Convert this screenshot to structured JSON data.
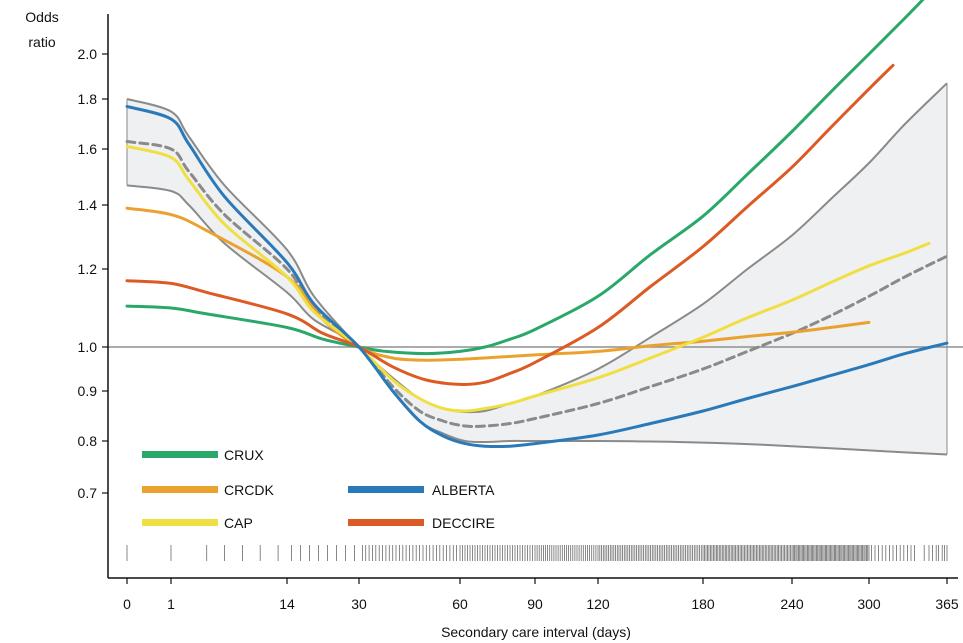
{
  "chart_data": {
    "type": "line",
    "title": "",
    "xlabel": "Secondary care interval (days)",
    "ylabel": "Odds ratio",
    "ylabel_lines": [
      "Odds",
      "ratio"
    ],
    "y_scale": "log",
    "ylim": [
      0.62,
      2.22
    ],
    "reference_line_y": 1.0,
    "x_ticks": [
      0,
      1,
      14,
      30,
      60,
      90,
      120,
      180,
      240,
      300,
      365
    ],
    "x_tick_labels": [
      "0",
      "1",
      "14",
      "30",
      "60",
      "90",
      "120",
      "180",
      "240",
      "300",
      "365"
    ],
    "y_ticks": [
      0.7,
      0.8,
      0.9,
      1.0,
      1.2,
      1.4,
      1.6,
      1.8,
      2.0
    ],
    "y_tick_labels": [
      "0.7",
      "0.8",
      "0.9",
      "1.0",
      "1.2",
      "1.4",
      "1.6",
      "1.8",
      "2.0"
    ],
    "legend": {
      "placement": "bottom-left",
      "entries": [
        "CRUX",
        "CRCDK",
        "ALBERTA",
        "CAP",
        "DECCIRE"
      ]
    },
    "series": [
      {
        "name": "CRUX",
        "color": "#2aa86a",
        "width": 3,
        "dash": "",
        "points": [
          [
            0,
            1.105
          ],
          [
            1,
            1.1
          ],
          [
            5,
            1.085
          ],
          [
            14,
            1.05
          ],
          [
            22,
            1.02
          ],
          [
            30,
            1.0
          ],
          [
            38,
            0.99
          ],
          [
            50,
            0.985
          ],
          [
            60,
            0.99
          ],
          [
            70,
            1.0
          ],
          [
            80,
            1.02
          ],
          [
            90,
            1.045
          ],
          [
            120,
            1.13
          ],
          [
            150,
            1.245
          ],
          [
            180,
            1.365
          ],
          [
            210,
            1.51
          ],
          [
            240,
            1.67
          ],
          [
            270,
            1.83
          ],
          [
            300,
            2.0
          ],
          [
            330,
            2.16
          ],
          [
            350,
            2.27
          ]
        ]
      },
      {
        "name": "CRCDK",
        "color": "#eba12e",
        "width": 3,
        "dash": "",
        "points": [
          [
            0,
            1.39
          ],
          [
            1,
            1.37
          ],
          [
            5,
            1.32
          ],
          [
            14,
            1.18
          ],
          [
            22,
            1.07
          ],
          [
            30,
            1.0
          ],
          [
            40,
            0.975
          ],
          [
            50,
            0.97
          ],
          [
            60,
            0.972
          ],
          [
            75,
            0.977
          ],
          [
            90,
            0.982
          ],
          [
            120,
            0.99
          ],
          [
            150,
            1.003
          ],
          [
            180,
            1.015
          ],
          [
            210,
            1.027
          ],
          [
            240,
            1.038
          ],
          [
            270,
            1.05
          ],
          [
            300,
            1.063
          ]
        ]
      },
      {
        "name": "ALBERTA",
        "color": "#2a7ab9",
        "width": 3,
        "dash": "",
        "points": [
          [
            0,
            1.77
          ],
          [
            1,
            1.72
          ],
          [
            3,
            1.62
          ],
          [
            7,
            1.43
          ],
          [
            14,
            1.22
          ],
          [
            20,
            1.11
          ],
          [
            30,
            1.0
          ],
          [
            40,
            0.9
          ],
          [
            48,
            0.84
          ],
          [
            55,
            0.81
          ],
          [
            62,
            0.795
          ],
          [
            70,
            0.79
          ],
          [
            80,
            0.79
          ],
          [
            90,
            0.795
          ],
          [
            120,
            0.812
          ],
          [
            150,
            0.835
          ],
          [
            180,
            0.86
          ],
          [
            210,
            0.885
          ],
          [
            240,
            0.91
          ],
          [
            270,
            0.935
          ],
          [
            300,
            0.96
          ],
          [
            330,
            0.985
          ],
          [
            365,
            1.01
          ]
        ]
      },
      {
        "name": "CAP",
        "color": "#f0df43",
        "width": 3,
        "dash": "",
        "points": [
          [
            0,
            1.61
          ],
          [
            1,
            1.57
          ],
          [
            3,
            1.49
          ],
          [
            7,
            1.34
          ],
          [
            14,
            1.18
          ],
          [
            20,
            1.09
          ],
          [
            30,
            1.0
          ],
          [
            40,
            0.925
          ],
          [
            48,
            0.885
          ],
          [
            55,
            0.865
          ],
          [
            62,
            0.86
          ],
          [
            70,
            0.865
          ],
          [
            80,
            0.875
          ],
          [
            90,
            0.89
          ],
          [
            120,
            0.93
          ],
          [
            150,
            0.975
          ],
          [
            180,
            1.025
          ],
          [
            210,
            1.075
          ],
          [
            240,
            1.12
          ],
          [
            270,
            1.165
          ],
          [
            300,
            1.21
          ],
          [
            330,
            1.25
          ],
          [
            350,
            1.28
          ]
        ]
      },
      {
        "name": "DECCIRE",
        "color": "#dc5a23",
        "width": 3,
        "dash": "",
        "points": [
          [
            0,
            1.17
          ],
          [
            1,
            1.163
          ],
          [
            5,
            1.14
          ],
          [
            14,
            1.085
          ],
          [
            22,
            1.035
          ],
          [
            30,
            1.0
          ],
          [
            40,
            0.955
          ],
          [
            50,
            0.925
          ],
          [
            60,
            0.915
          ],
          [
            70,
            0.92
          ],
          [
            80,
            0.94
          ],
          [
            90,
            0.965
          ],
          [
            120,
            1.05
          ],
          [
            150,
            1.155
          ],
          [
            180,
            1.27
          ],
          [
            210,
            1.395
          ],
          [
            240,
            1.535
          ],
          [
            270,
            1.685
          ],
          [
            300,
            1.845
          ],
          [
            320,
            1.95
          ]
        ]
      },
      {
        "name": "",
        "color": "#8a8a8a",
        "width": 3,
        "dash": "8,5",
        "points": [
          [
            0,
            1.63
          ],
          [
            1,
            1.6
          ],
          [
            3,
            1.52
          ],
          [
            7,
            1.37
          ],
          [
            14,
            1.2
          ],
          [
            20,
            1.1
          ],
          [
            30,
            1.0
          ],
          [
            40,
            0.91
          ],
          [
            48,
            0.86
          ],
          [
            55,
            0.84
          ],
          [
            62,
            0.83
          ],
          [
            70,
            0.83
          ],
          [
            80,
            0.835
          ],
          [
            90,
            0.845
          ],
          [
            120,
            0.875
          ],
          [
            150,
            0.91
          ],
          [
            180,
            0.95
          ],
          [
            210,
            0.99
          ],
          [
            240,
            1.035
          ],
          [
            270,
            1.08
          ],
          [
            300,
            1.13
          ],
          [
            330,
            1.18
          ],
          [
            365,
            1.24
          ]
        ]
      }
    ],
    "confidence_band": {
      "upper": [
        [
          0,
          1.8
        ],
        [
          1,
          1.75
        ],
        [
          3,
          1.65
        ],
        [
          7,
          1.47
        ],
        [
          14,
          1.26
        ],
        [
          20,
          1.13
        ],
        [
          30,
          1.0
        ],
        [
          40,
          0.93
        ],
        [
          48,
          0.885
        ],
        [
          55,
          0.865
        ],
        [
          62,
          0.858
        ],
        [
          70,
          0.86
        ],
        [
          80,
          0.875
        ],
        [
          90,
          0.89
        ],
        [
          120,
          0.95
        ],
        [
          150,
          1.025
        ],
        [
          180,
          1.11
        ],
        [
          210,
          1.2
        ],
        [
          240,
          1.305
        ],
        [
          270,
          1.42
        ],
        [
          300,
          1.55
        ],
        [
          330,
          1.7
        ],
        [
          365,
          1.87
        ]
      ],
      "lower": [
        [
          0,
          1.47
        ],
        [
          1,
          1.45
        ],
        [
          3,
          1.4
        ],
        [
          7,
          1.28
        ],
        [
          14,
          1.14
        ],
        [
          20,
          1.07
        ],
        [
          30,
          1.0
        ],
        [
          40,
          0.9
        ],
        [
          48,
          0.84
        ],
        [
          55,
          0.815
        ],
        [
          62,
          0.8
        ],
        [
          70,
          0.798
        ],
        [
          80,
          0.8
        ],
        [
          90,
          0.8
        ],
        [
          120,
          0.8
        ],
        [
          150,
          0.799
        ],
        [
          180,
          0.797
        ],
        [
          210,
          0.794
        ],
        [
          240,
          0.79
        ],
        [
          270,
          0.786
        ],
        [
          300,
          0.782
        ],
        [
          330,
          0.778
        ],
        [
          365,
          0.774
        ]
      ],
      "fill": "#eff0f2",
      "line_color": "#8a8a8a"
    },
    "rug": {
      "description_free": true,
      "color": "#6b6b6b"
    }
  },
  "legend_labels": {
    "crux": "CRUX",
    "crcdk": "CRCDK",
    "alberta": "ALBERTA",
    "cap": "CAP",
    "deccire": "DECCIRE"
  },
  "axis_text": {
    "y_line1": "Odds",
    "y_line2": "ratio",
    "x_title": "Secondary care interval (days)"
  }
}
